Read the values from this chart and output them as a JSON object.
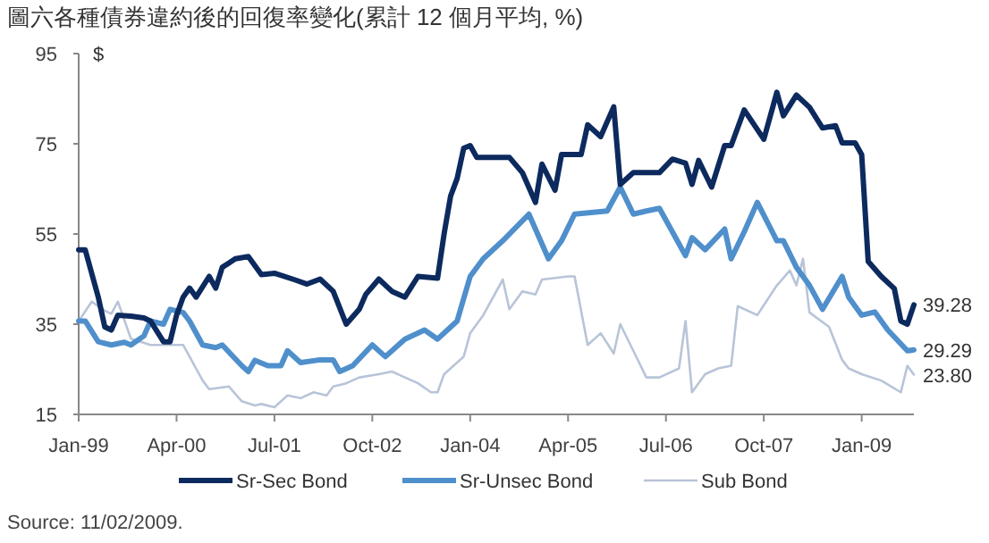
{
  "chart_data": {
    "type": "line",
    "title": "圖六各種債券違約後的回復率變化(累計 12 個月平均, %)",
    "ylabel": "$",
    "xlim": [
      "1999-01",
      "2009-09"
    ],
    "ylim": [
      15,
      95
    ],
    "yticks": [
      15,
      35,
      55,
      75,
      95
    ],
    "xticks": [
      {
        "value": "1999-01",
        "label": "Jan-99"
      },
      {
        "value": "2000-04",
        "label": "Apr-00"
      },
      {
        "value": "2001-07",
        "label": "Jul-01"
      },
      {
        "value": "2002-10",
        "label": "Oct-02"
      },
      {
        "value": "2004-01",
        "label": "Jan-04"
      },
      {
        "value": "2005-04",
        "label": "Apr-05"
      },
      {
        "value": "2006-07",
        "label": "Jul-06"
      },
      {
        "value": "2007-10",
        "label": "Oct-07"
      },
      {
        "value": "2009-01",
        "label": "Jan-09"
      }
    ],
    "legend": "bottom",
    "series": [
      {
        "name": "Sr-Sec Bond",
        "color": "#0d2a5e",
        "x": [
          "1999-01",
          "1999-02",
          "1999-04",
          "1999-05",
          "1999-06",
          "1999-07",
          "1999-09",
          "1999-11",
          "1999-12",
          "2000-02",
          "2000-03",
          "2000-04",
          "2000-05",
          "2000-06",
          "2000-07",
          "2000-09",
          "2000-10",
          "2000-11",
          "2001-01",
          "2001-03",
          "2001-05",
          "2001-07",
          "2001-10",
          "2001-12",
          "2002-02",
          "2002-04",
          "2002-06",
          "2002-08",
          "2002-09",
          "2002-11",
          "2003-01",
          "2003-03",
          "2003-05",
          "2003-08",
          "2003-09",
          "2003-10",
          "2003-11",
          "2003-12",
          "2004-01",
          "2004-02",
          "2004-07",
          "2004-09",
          "2004-11",
          "2004-12",
          "2005-02",
          "2005-03",
          "2005-06",
          "2005-07",
          "2005-09",
          "2005-11",
          "2005-12",
          "2006-02",
          "2006-06",
          "2006-08",
          "2006-10",
          "2006-11",
          "2006-12",
          "2007-02",
          "2007-04",
          "2007-05",
          "2007-07",
          "2007-10",
          "2007-12",
          "2008-01",
          "2008-03",
          "2008-05",
          "2008-07",
          "2008-09",
          "2008-10",
          "2008-12",
          "2009-01",
          "2009-02",
          "2009-04",
          "2009-06",
          "2009-07",
          "2009-08",
          "2009-09"
        ],
        "values": [
          51.5,
          51.5,
          41,
          34.4,
          33.7,
          37,
          36.8,
          36.4,
          35.7,
          31.1,
          31.1,
          37,
          41,
          43,
          41,
          45.6,
          43,
          47.6,
          49.5,
          50,
          46,
          46.3,
          44.9,
          43.9,
          45,
          42.3,
          35,
          38.3,
          41.6,
          45,
          42.3,
          41,
          45.6,
          45.2,
          55,
          63.4,
          67.3,
          74,
          74.6,
          72,
          72,
          68.6,
          62,
          70.5,
          64.7,
          72.6,
          72.6,
          79.2,
          76.6,
          83.2,
          66,
          68.6,
          68.6,
          71.6,
          70.7,
          66,
          71.3,
          65.4,
          74.6,
          74.6,
          82.5,
          76,
          86.4,
          81.2,
          85.8,
          83.1,
          78.5,
          79,
          75.2,
          75.2,
          72.6,
          48.9,
          45.6,
          42.9,
          35.7,
          35,
          39.28
        ]
      },
      {
        "name": "Sr-Unsec Bond",
        "color": "#4f8fcb",
        "x": [
          "1999-01",
          "1999-02",
          "1999-04",
          "1999-06",
          "1999-08",
          "1999-09",
          "1999-11",
          "1999-12",
          "2000-02",
          "2000-03",
          "2000-05",
          "2000-06",
          "2000-08",
          "2000-10",
          "2000-11",
          "2001-02",
          "2001-03",
          "2001-04",
          "2001-06",
          "2001-08",
          "2001-09",
          "2001-11",
          "2002-02",
          "2002-04",
          "2002-05",
          "2002-07",
          "2002-10",
          "2002-12",
          "2003-02",
          "2003-03",
          "2003-06",
          "2003-08",
          "2003-11",
          "2004-01",
          "2004-03",
          "2004-06",
          "2004-10",
          "2005-01",
          "2005-03",
          "2005-05",
          "2005-10",
          "2005-12",
          "2006-02",
          "2006-04",
          "2006-06",
          "2006-10",
          "2006-11",
          "2007-01",
          "2007-04",
          "2007-05",
          "2007-07",
          "2007-09",
          "2007-12",
          "2008-01",
          "2008-03",
          "2008-05",
          "2008-07",
          "2008-10",
          "2008-11",
          "2009-01",
          "2009-03",
          "2009-05",
          "2009-08",
          "2009-09"
        ],
        "values": [
          35.7,
          35.7,
          31.1,
          30.4,
          31,
          30.4,
          32.4,
          35.7,
          35,
          38.3,
          37.6,
          35.7,
          30.4,
          29.8,
          30.4,
          25.8,
          24.5,
          27,
          25.8,
          25.8,
          29.1,
          26.5,
          27.1,
          27.1,
          24.5,
          25.8,
          30.4,
          27.8,
          30.4,
          31.7,
          33.7,
          31.7,
          35.7,
          45.6,
          49.5,
          53.5,
          59.4,
          49.5,
          53.5,
          59.4,
          60.1,
          65.4,
          59.4,
          60.1,
          60.7,
          50.2,
          54.2,
          51.5,
          56.1,
          49.5,
          55.5,
          62,
          53.5,
          53.5,
          47.6,
          43.6,
          38.3,
          45.6,
          41,
          37,
          37.7,
          33.7,
          29.1,
          29.29
        ]
      },
      {
        "name": "Sub Bond",
        "color": "#b8c4d8",
        "x": [
          "1999-01",
          "1999-03",
          "1999-05",
          "1999-06",
          "1999-07",
          "1999-09",
          "1999-12",
          "2000-03",
          "2000-05",
          "2000-06",
          "2000-08",
          "2000-09",
          "2000-12",
          "2001-02",
          "2001-04",
          "2001-05",
          "2001-07",
          "2001-09",
          "2001-11",
          "2002-01",
          "2002-03",
          "2002-04",
          "2002-06",
          "2002-08",
          "2002-11",
          "2003-01",
          "2003-03",
          "2003-05",
          "2003-07",
          "2003-08",
          "2003-09",
          "2003-12",
          "2004-01",
          "2004-03",
          "2004-06",
          "2004-07",
          "2004-09",
          "2004-11",
          "2004-12",
          "2005-04",
          "2005-05",
          "2005-07",
          "2005-09",
          "2005-11",
          "2005-12",
          "2006-02",
          "2006-04",
          "2006-06",
          "2006-09",
          "2006-10",
          "2006-11",
          "2007-01",
          "2007-03",
          "2007-05",
          "2007-06",
          "2007-09",
          "2007-12",
          "2008-02",
          "2008-03",
          "2008-04",
          "2008-05",
          "2008-08",
          "2008-10",
          "2008-11",
          "2009-01",
          "2009-04",
          "2009-07",
          "2009-08",
          "2009-09"
        ],
        "values": [
          35.7,
          40,
          38,
          37.3,
          40,
          31.8,
          30.4,
          30.4,
          30.4,
          27.8,
          22.5,
          20.6,
          21.2,
          17.9,
          17,
          17.3,
          16.6,
          19.2,
          18.6,
          19.9,
          19.2,
          21.2,
          21.9,
          23.2,
          23.9,
          24.5,
          23.2,
          21.9,
          19.9,
          19.9,
          23.9,
          27.8,
          33,
          37,
          44.9,
          38.3,
          42.3,
          41.6,
          44.9,
          45.6,
          45.6,
          30.4,
          33,
          28.5,
          35,
          29.1,
          23.2,
          23.2,
          25.2,
          35.7,
          19.9,
          23.9,
          25.2,
          25.8,
          39,
          37,
          43.6,
          46.9,
          43.6,
          49.5,
          37.6,
          34.4,
          27.1,
          25.2,
          23.9,
          22.5,
          19.9,
          25.8,
          23.8
        ]
      }
    ],
    "annotations": [
      {
        "text": "39.28",
        "x": "2009-09",
        "y": 39.28
      },
      {
        "text": "29.29",
        "x": "2009-09",
        "y": 29.29
      },
      {
        "text": "23.80",
        "x": "2009-09",
        "y": 23.8
      },
      "Source: 11/02/2009."
    ]
  }
}
